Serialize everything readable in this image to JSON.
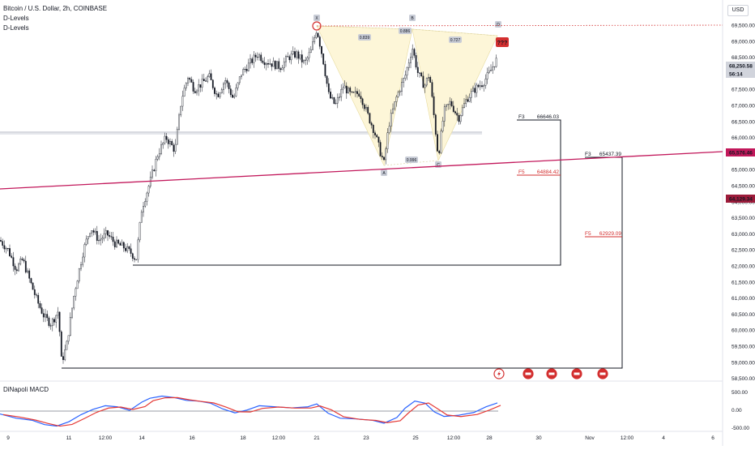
{
  "header": {
    "symbol_line": "Bitcoin / U.S. Dollar, 2h, COINBASE",
    "indicator_1": "D-Levels",
    "indicator_2": "D-Levels"
  },
  "price_axis": {
    "unit": "USD",
    "ticks": [
      "69,500.00",
      "69,000.00",
      "68,500.00",
      "68,000.00",
      "67,500.00",
      "67,000.00",
      "66,500.00",
      "66,000.00",
      "65,500.00",
      "65,000.00",
      "64,500.00",
      "64,000.00",
      "63,500.00",
      "63,000.00",
      "62,500.00",
      "62,000.00",
      "61,500.00",
      "61,000.00",
      "60,500.00",
      "60,000.00",
      "59,500.00",
      "59,000.00",
      "58,500.00"
    ],
    "current_price": "68,250.58",
    "countdown": "56:14",
    "tag_red": "65,576.46",
    "tag_dark": "64,129.34"
  },
  "time_axis": {
    "labels": [
      {
        "t": "9",
        "x": 10
      },
      {
        "t": "11",
        "x": 85
      },
      {
        "t": "12:00",
        "x": 130
      },
      {
        "t": "14",
        "x": 175
      },
      {
        "t": "16",
        "x": 237
      },
      {
        "t": "18",
        "x": 300
      },
      {
        "t": "12:00",
        "x": 344
      },
      {
        "t": "21",
        "x": 391
      },
      {
        "t": "23",
        "x": 452
      },
      {
        "t": "25",
        "x": 513
      },
      {
        "t": "12:00",
        "x": 560
      },
      {
        "t": "28",
        "x": 604
      },
      {
        "t": "30",
        "x": 665
      },
      {
        "t": "Nov",
        "x": 728
      },
      {
        "t": "12:00",
        "x": 774
      },
      {
        "t": "4",
        "x": 819
      },
      {
        "t": "6",
        "x": 880
      }
    ]
  },
  "pattern": {
    "ratios": [
      "0.839",
      "0.886",
      "0.727",
      "0.996"
    ],
    "points": [
      "X",
      "A",
      "B",
      "C",
      "D"
    ],
    "target_label": "???"
  },
  "levels": [
    {
      "name": "F3",
      "value": "66646.03",
      "color": "#131722"
    },
    {
      "name": "F5",
      "value": "64884.42",
      "color": "#d32f2f"
    },
    {
      "name": "F3",
      "value": "65437.39",
      "color": "#131722"
    },
    {
      "name": "F5",
      "value": "62929.09",
      "color": "#d32f2f"
    }
  ],
  "macd": {
    "title": "DiNapoli MACD",
    "ticks": [
      "500.00",
      "0.00",
      "-500.00"
    ]
  },
  "chart_data": {
    "type": "candlestick",
    "title": "Bitcoin / U.S. Dollar, 2h, COINBASE",
    "ylim": [
      58400,
      69800
    ],
    "key_prices": {
      "high": 69500,
      "low": 58900,
      "last": 68250.58
    },
    "levels": [
      66646.03,
      64884.42,
      65437.39,
      62929.09
    ]
  },
  "colors": {
    "candle": "#131722",
    "trend": "#c2185b",
    "red": "#d32f2f",
    "pattern_fill": "#fdf6d8",
    "macd_fast": "#2962ff",
    "macd_slow": "#e53935"
  }
}
